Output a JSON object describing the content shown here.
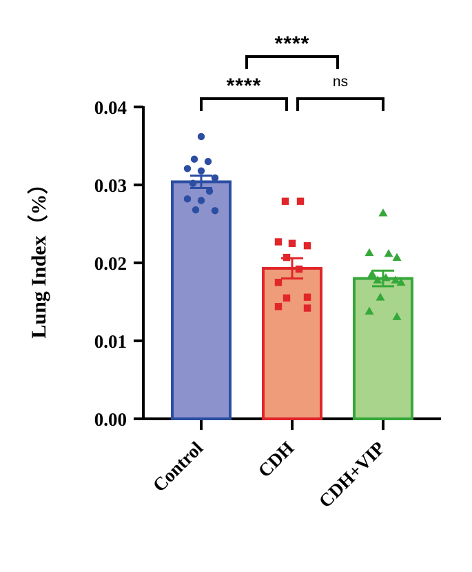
{
  "chart_data": {
    "type": "bar",
    "title": "",
    "xlabel": "",
    "ylabel": "Lung Index（%）",
    "ylim": [
      0,
      0.04
    ],
    "yticks": [
      "0.00",
      "0.01",
      "0.02",
      "0.03",
      "0.04"
    ],
    "categories": [
      "Control",
      "CDH",
      "CDH+VIP"
    ],
    "values": [
      0.0304,
      0.0193,
      0.018
    ],
    "sem": [
      0.0008,
      0.0013,
      0.001
    ],
    "colors": {
      "fill": [
        "#8b92cc",
        "#ef9c7b",
        "#a8d48c"
      ],
      "stroke": [
        "#2b4da2",
        "#e0262a",
        "#36a83a"
      ]
    },
    "markers": [
      "circle",
      "square",
      "triangle"
    ],
    "points": [
      [
        0.0362,
        0.0333,
        0.033,
        0.0321,
        0.0318,
        0.0309,
        0.0302,
        0.0292,
        0.0282,
        0.028,
        0.0267,
        0.0268
      ],
      [
        0.0279,
        0.0279,
        0.0227,
        0.0225,
        0.0222,
        0.0207,
        0.0192,
        0.0175,
        0.0156,
        0.0155,
        0.0144,
        0.0142
      ],
      [
        0.0264,
        0.0213,
        0.0212,
        0.0207,
        0.0186,
        0.0181,
        0.0178,
        0.0178,
        0.0175,
        0.0156,
        0.0138,
        0.0131
      ]
    ],
    "comparisons": [
      {
        "from": 0,
        "to": 1,
        "label": "****"
      },
      {
        "from": 1,
        "to": 2,
        "label": "ns"
      },
      {
        "from": 0.5,
        "to": 1.5,
        "label": "****"
      }
    ]
  }
}
